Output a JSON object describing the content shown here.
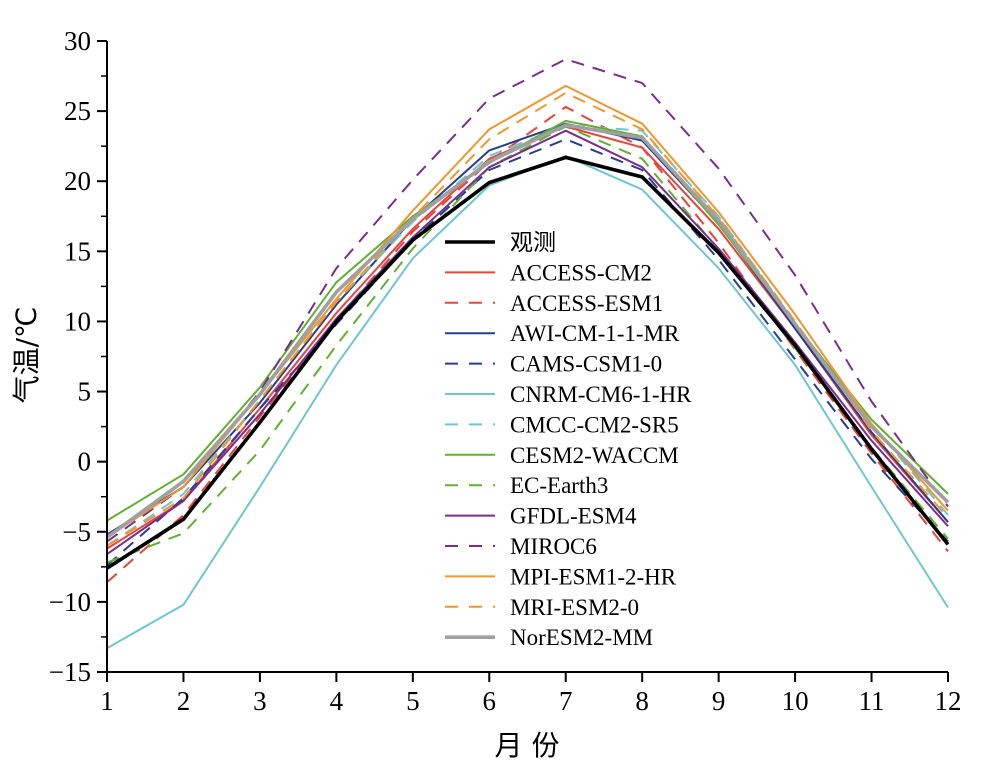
{
  "chart_data": {
    "type": "line",
    "xlabel": "月 份",
    "ylabel": "气温/℃",
    "xlim": [
      1,
      12
    ],
    "ylim": [
      -15,
      30
    ],
    "x_ticks": [
      1,
      2,
      3,
      4,
      5,
      6,
      7,
      8,
      9,
      10,
      11,
      12
    ],
    "y_ticks": [
      -15,
      -10,
      -5,
      0,
      5,
      10,
      15,
      20,
      25,
      30
    ],
    "grid": false,
    "legend_position": "center-right",
    "x": [
      1,
      2,
      3,
      4,
      5,
      6,
      7,
      8,
      9,
      10,
      11,
      12
    ],
    "series": [
      {
        "name": "观测",
        "color": "#000000",
        "dash": "solid",
        "width": "thick",
        "values": [
          -7.6,
          -4.1,
          2.8,
          10.0,
          15.8,
          19.9,
          21.7,
          20.3,
          14.9,
          8.3,
          0.9,
          -5.9
        ]
      },
      {
        "name": "ACCESS-CM2",
        "color": "#e8423a",
        "dash": "solid",
        "width": "normal",
        "values": [
          -6.2,
          -2.8,
          3.8,
          10.6,
          16.6,
          21.6,
          23.9,
          22.4,
          16.6,
          9.5,
          1.9,
          -4.3
        ]
      },
      {
        "name": "ACCESS-ESM1",
        "color": "#e8423a",
        "dash": "dashed",
        "width": "normal",
        "values": [
          -8.6,
          -3.8,
          3.2,
          10.1,
          16.4,
          21.4,
          25.3,
          22.4,
          15.6,
          8.0,
          0.6,
          -6.4
        ]
      },
      {
        "name": "AWI-CM-1-1-MR",
        "color": "#283d8f",
        "dash": "solid",
        "width": "normal",
        "values": [
          -5.2,
          -1.8,
          4.2,
          11.2,
          17.3,
          22.2,
          24.1,
          22.9,
          17.0,
          9.5,
          2.1,
          -4.3
        ]
      },
      {
        "name": "CAMS-CSM1-0",
        "color": "#283d8f",
        "dash": "dashed",
        "width": "normal",
        "values": [
          -7.4,
          -2.6,
          3.8,
          9.8,
          15.8,
          20.8,
          23.0,
          20.8,
          14.4,
          7.3,
          0.2,
          -5.7
        ]
      },
      {
        "name": "CNRM-CM6-1-HR",
        "color": "#6fc5d0",
        "dash": "solid",
        "width": "normal",
        "values": [
          -13.3,
          -10.2,
          -1.8,
          6.9,
          14.5,
          19.7,
          21.8,
          19.4,
          13.8,
          6.9,
          -1.8,
          -10.4
        ]
      },
      {
        "name": "CMCC-CM2-SR5",
        "color": "#6fc5d0",
        "dash": "dashed",
        "width": "normal",
        "values": [
          -6.0,
          -2.3,
          4.4,
          11.4,
          17.1,
          21.8,
          24.0,
          23.6,
          17.5,
          9.9,
          2.7,
          -3.8
        ]
      },
      {
        "name": "CESM2-WACCM",
        "color": "#62b030",
        "dash": "solid",
        "width": "normal",
        "values": [
          -4.2,
          -0.9,
          5.3,
          12.8,
          17.5,
          21.3,
          24.3,
          23.2,
          16.9,
          9.8,
          3.0,
          -2.3
        ]
      },
      {
        "name": "EC-Earth3",
        "color": "#62b030",
        "dash": "dashed",
        "width": "normal",
        "values": [
          -7.2,
          -5.1,
          0.8,
          8.3,
          15.2,
          21.0,
          23.9,
          21.6,
          15.1,
          8.1,
          1.0,
          -5.5
        ]
      },
      {
        "name": "GFDL-ESM4",
        "color": "#7b2d8c",
        "dash": "solid",
        "width": "normal",
        "values": [
          -6.6,
          -2.8,
          3.4,
          10.2,
          16.0,
          21.0,
          23.6,
          21.0,
          15.2,
          8.5,
          1.5,
          -4.6
        ]
      },
      {
        "name": "MIROC6",
        "color": "#7b2d8c",
        "dash": "dashed",
        "width": "normal",
        "values": [
          -5.7,
          -1.8,
          5.0,
          13.8,
          20.1,
          25.9,
          28.7,
          27.0,
          20.9,
          13.3,
          4.3,
          -3.2
        ]
      },
      {
        "name": "MPI-ESM1-2-HR",
        "color": "#f0962e",
        "dash": "solid",
        "width": "normal",
        "values": [
          -5.4,
          -1.8,
          4.8,
          11.6,
          17.9,
          23.7,
          26.8,
          24.1,
          17.8,
          10.5,
          2.7,
          -3.5
        ]
      },
      {
        "name": "MRI-ESM2-0",
        "color": "#f0962e",
        "dash": "dashed",
        "width": "normal",
        "values": [
          -6.0,
          -2.6,
          4.4,
          11.4,
          17.4,
          23.0,
          26.3,
          23.7,
          17.4,
          10.0,
          2.2,
          -4.0
        ]
      },
      {
        "name": "NorESM2-MM",
        "color": "#a0a0a0",
        "dash": "solid",
        "width": "thick",
        "values": [
          -5.4,
          -1.4,
          4.8,
          12.1,
          17.3,
          21.4,
          24.0,
          23.1,
          17.2,
          9.8,
          2.5,
          -2.9
        ]
      }
    ]
  }
}
